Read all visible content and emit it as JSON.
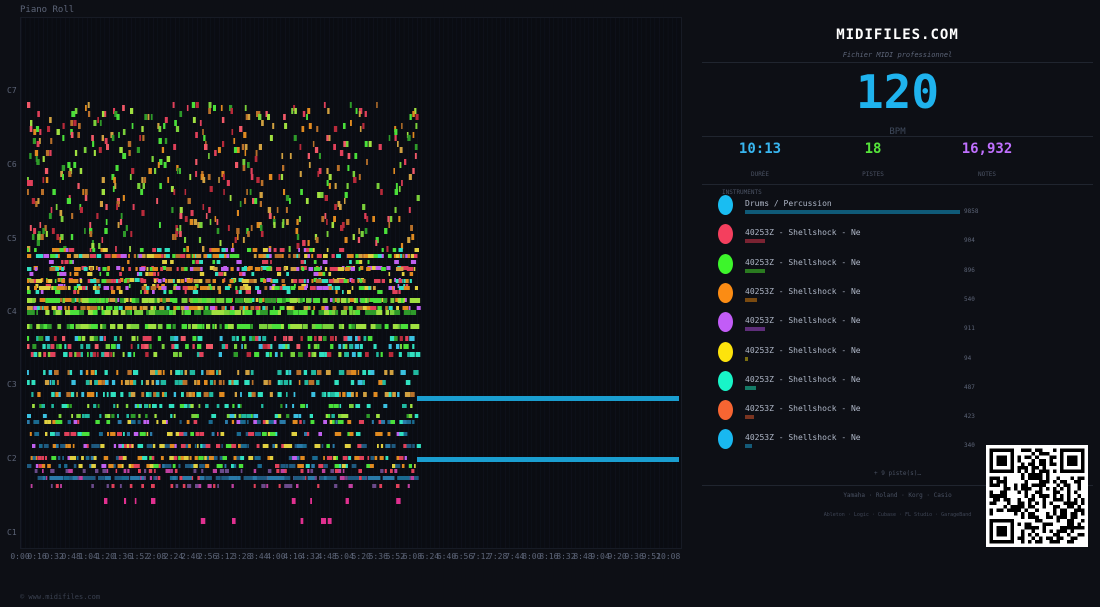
{
  "piano_roll": {
    "title": "Piano Roll",
    "octave_labels": [
      "C7",
      "C6",
      "C5",
      "C4",
      "C3",
      "C2",
      "C1"
    ],
    "time_labels": [
      "0:00",
      "0:16",
      "0:32",
      "0:48",
      "1:04",
      "1:20",
      "1:36",
      "1:52",
      "2:08",
      "2:24",
      "2:40",
      "2:56",
      "3:12",
      "3:28",
      "3:44",
      "4:00",
      "4:16",
      "4:32",
      "4:48",
      "5:04",
      "5:20",
      "5:36",
      "5:52",
      "6:08",
      "6:24",
      "6:40",
      "6:56",
      "7:12",
      "7:28",
      "7:44",
      "8:00",
      "8:16",
      "8:32",
      "8:48",
      "9:04",
      "9:20",
      "9:36",
      "9:52",
      "10:08"
    ]
  },
  "footer": "© www.midifiles.com",
  "panel": {
    "brand": "MIDIFILES.COM",
    "subtitle": "Fichier MIDI professionnel",
    "bpm": "120",
    "bpm_label": "BPM",
    "stats": [
      {
        "value": "10:13",
        "label": "DURÉE",
        "color": "#38b6f0"
      },
      {
        "value": "18",
        "label": "PISTES",
        "color": "#55e33a"
      },
      {
        "value": "16,932",
        "label": "NOTES",
        "color": "#c070ff"
      }
    ],
    "instruments_title": "INSTRUMENTS",
    "instruments": [
      {
        "name": "Drums / Percussion",
        "count": "9858",
        "count_value": 9858,
        "color": "#19bdf2",
        "bar_color": "#0f5a78"
      },
      {
        "name": "40253Z - Shellshock - Ne",
        "count": "904",
        "count_value": 904,
        "color": "#f43f5e",
        "bar_color": "#7a2332"
      },
      {
        "name": "40253Z - Shellshock - Ne",
        "count": "896",
        "count_value": 896,
        "color": "#3df52b",
        "bar_color": "#2a7a20"
      },
      {
        "name": "40253Z - Shellshock - Ne",
        "count": "540",
        "count_value": 540,
        "color": "#fb8c14",
        "bar_color": "#7a4a10"
      },
      {
        "name": "40253Z - Shellshock - Ne",
        "count": "911",
        "count_value": 911,
        "color": "#c25cf7",
        "bar_color": "#5e2e7a"
      },
      {
        "name": "40253Z - Shellshock - Ne",
        "count": "94",
        "count_value": 94,
        "color": "#fde30c",
        "bar_color": "#7a6e10"
      },
      {
        "name": "40253Z - Shellshock - Ne",
        "count": "487",
        "count_value": 487,
        "color": "#18f5c8",
        "bar_color": "#147a66"
      },
      {
        "name": "40253Z - Shellshock - Ne",
        "count": "423",
        "count_value": 423,
        "color": "#f76532",
        "bar_color": "#7a3420"
      },
      {
        "name": "40253Z - Shellshock - Ne",
        "count": "340",
        "count_value": 340,
        "color": "#19b8f0",
        "bar_color": "#145a78"
      }
    ],
    "more": "+ 9 piste(s)…",
    "brands_line1": "Yamaha · Roland · Korg · Casio",
    "brands_line2": "Ableton · Logic · Cubase · FL Studio · GarageBand"
  }
}
